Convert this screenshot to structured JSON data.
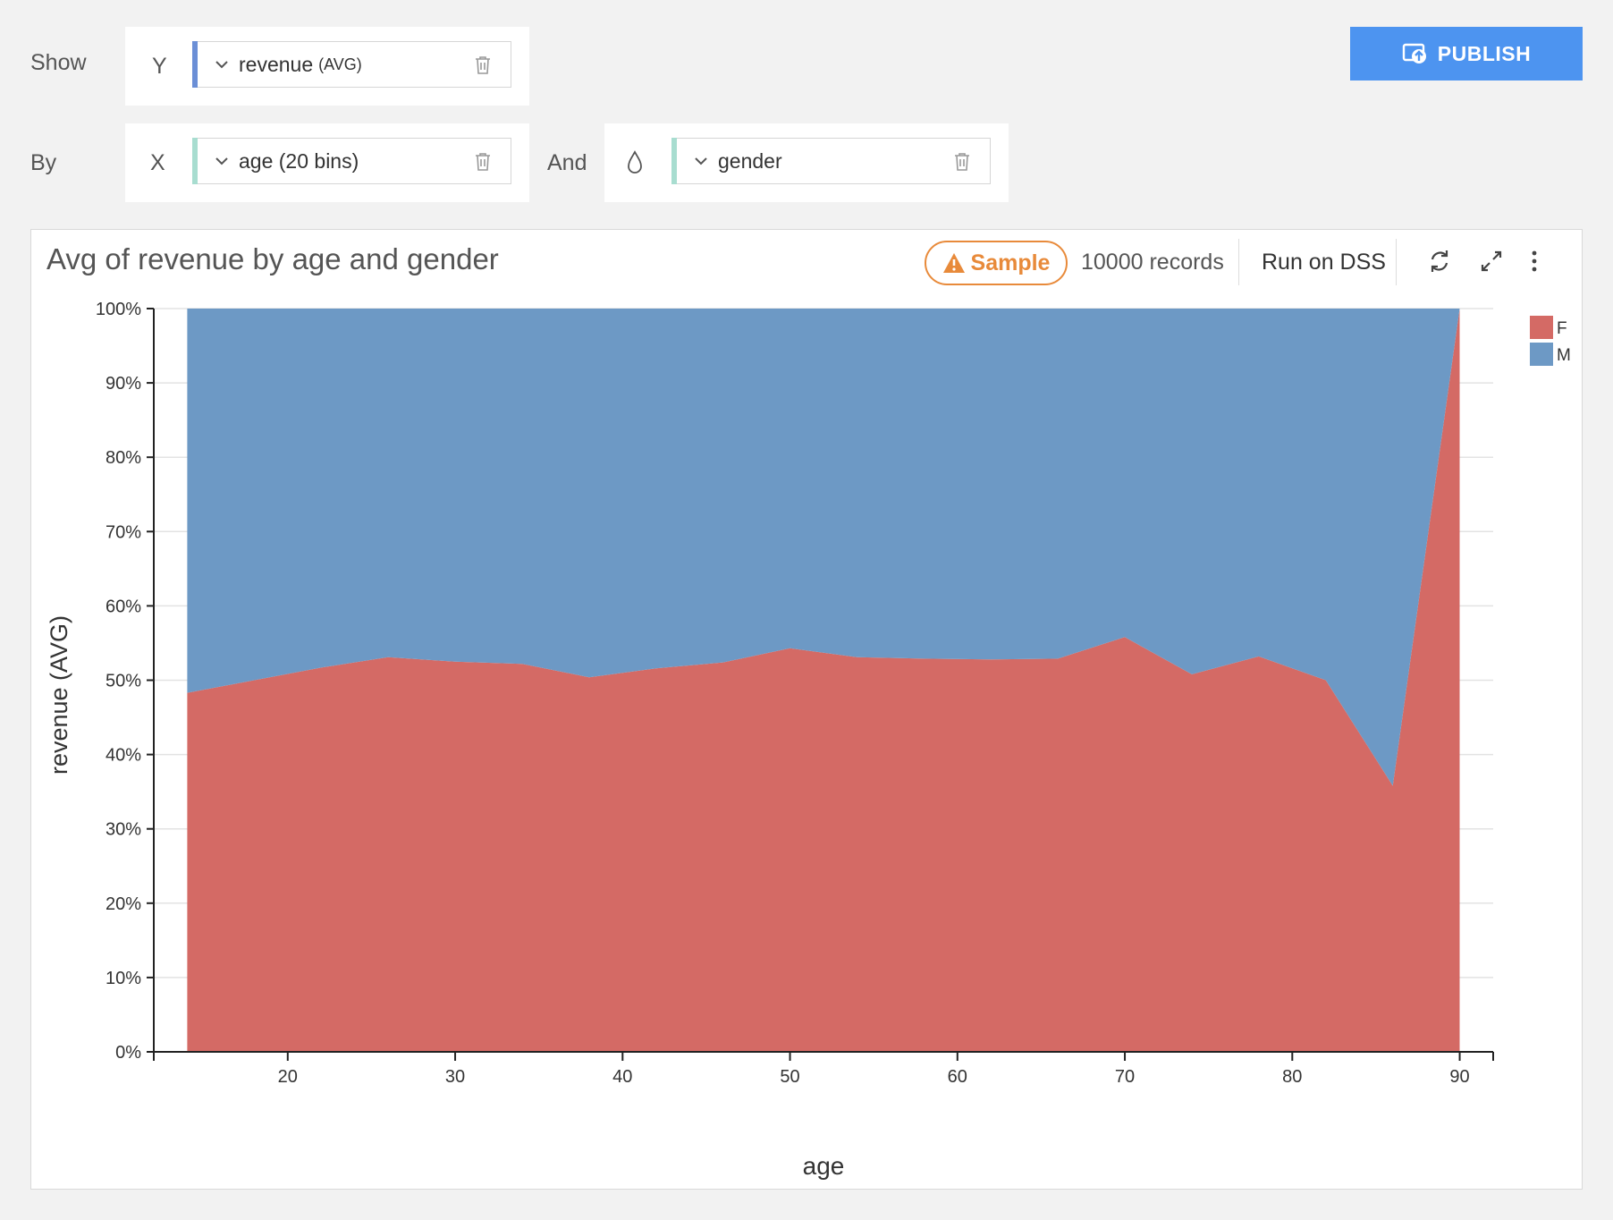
{
  "controls": {
    "show_label": "Show",
    "by_label": "By",
    "and_label": "And",
    "y_letter": "Y",
    "x_letter": "X",
    "y_field": "revenue",
    "y_agg": "(AVG)",
    "x_field": "age (20 bins)",
    "color_field": "gender",
    "publish_label": "PUBLISH"
  },
  "colors": {
    "y_accent": "#6b8fd6",
    "x_accent": "#a8ddd0",
    "color_accent": "#a8ddd0",
    "female": "#d46a65",
    "male": "#6d99c5"
  },
  "panel": {
    "sample_label": "Sample",
    "records_label": "10000 records",
    "run_label": "Run on DSS"
  },
  "chart_data": {
    "type": "area",
    "stacked": "percent",
    "title": "Avg of revenue by age and gender",
    "xlabel": "age",
    "ylabel": "revenue (AVG)",
    "xlim": [
      12,
      92
    ],
    "ylim": [
      0,
      100
    ],
    "x_ticks": [
      20,
      30,
      40,
      50,
      60,
      70,
      80,
      90
    ],
    "y_ticks": [
      "0%",
      "10%",
      "20%",
      "30%",
      "40%",
      "50%",
      "60%",
      "70%",
      "80%",
      "90%",
      "100%"
    ],
    "grid": true,
    "legend": "top-right",
    "x": [
      14,
      18,
      22,
      26,
      30,
      34,
      38,
      42,
      46,
      50,
      54,
      58,
      62,
      66,
      70,
      74,
      78,
      82,
      86,
      90
    ],
    "series": [
      {
        "name": "F",
        "values": [
          48.3,
          50.0,
          51.7,
          53.1,
          52.5,
          52.2,
          50.4,
          51.6,
          52.4,
          54.3,
          53.1,
          52.9,
          52.8,
          52.9,
          55.8,
          50.8,
          53.2,
          50.0,
          35.8,
          100
        ]
      },
      {
        "name": "M",
        "values": [
          51.7,
          50.0,
          48.3,
          46.9,
          47.5,
          47.8,
          49.6,
          48.4,
          47.6,
          45.7,
          46.9,
          47.1,
          47.2,
          47.1,
          44.2,
          49.2,
          46.8,
          50.0,
          64.2,
          0
        ]
      }
    ]
  }
}
